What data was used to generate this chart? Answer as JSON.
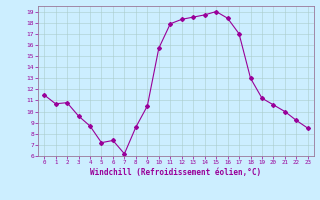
{
  "x": [
    0,
    1,
    2,
    3,
    4,
    5,
    6,
    7,
    8,
    9,
    10,
    11,
    12,
    13,
    14,
    15,
    16,
    17,
    18,
    19,
    20,
    21,
    22,
    23
  ],
  "y": [
    11.5,
    10.7,
    10.8,
    9.6,
    8.7,
    7.2,
    7.4,
    6.2,
    8.6,
    10.5,
    15.7,
    17.9,
    18.3,
    18.5,
    18.7,
    19.0,
    18.4,
    17.0,
    13.0,
    11.2,
    10.6,
    10.0,
    9.2,
    8.5
  ],
  "line_color": "#990099",
  "marker": "D",
  "marker_size": 2,
  "bg_color": "#cceeff",
  "grid_color": "#aaddee",
  "xlabel": "Windchill (Refroidissement éolien,°C)",
  "xlabel_color": "#990099",
  "tick_color": "#990099",
  "spine_color": "#997799",
  "ylim": [
    6,
    19.5
  ],
  "xlim": [
    -0.5,
    23.5
  ],
  "yticks": [
    6,
    7,
    8,
    9,
    10,
    11,
    12,
    13,
    14,
    15,
    16,
    17,
    18,
    19
  ],
  "xticks": [
    0,
    1,
    2,
    3,
    4,
    5,
    6,
    7,
    8,
    9,
    10,
    11,
    12,
    13,
    14,
    15,
    16,
    17,
    18,
    19,
    20,
    21,
    22,
    23
  ],
  "xtick_labels": [
    "0",
    "1",
    "2",
    "3",
    "4",
    "5",
    "6",
    "7",
    "8",
    "9",
    "10",
    "11",
    "12",
    "13",
    "14",
    "15",
    "16",
    "17",
    "18",
    "19",
    "20",
    "21",
    "22",
    "23"
  ]
}
